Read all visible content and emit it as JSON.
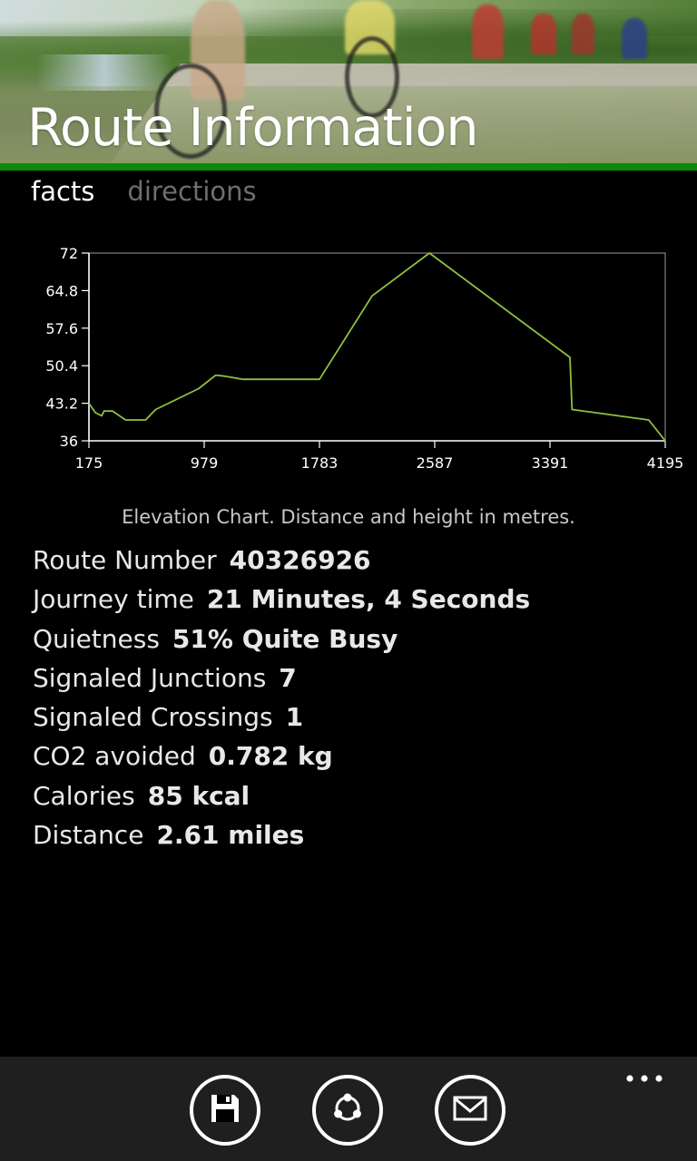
{
  "header": {
    "title": "Route Information"
  },
  "pivots": [
    {
      "label": "facts",
      "active": true
    },
    {
      "label": "directions",
      "active": false
    }
  ],
  "chart_data": {
    "type": "line",
    "x": [
      175,
      220,
      265,
      280,
      340,
      430,
      570,
      640,
      940,
      1060,
      1120,
      1250,
      1783,
      2150,
      2550,
      3530,
      3545,
      4080,
      4195
    ],
    "y": [
      43.2,
      41.4,
      40.8,
      41.7,
      41.7,
      40.0,
      40.0,
      42.0,
      46.0,
      48.6,
      48.4,
      47.8,
      47.8,
      63.8,
      72.0,
      52.0,
      42.0,
      40.0,
      36.0
    ],
    "xticks": [
      "175",
      "979",
      "1783",
      "2587",
      "3391",
      "4195"
    ],
    "yticks": [
      "72",
      "64.8",
      "57.6",
      "50.4",
      "43.2",
      "36"
    ],
    "xlim": [
      175,
      4195
    ],
    "ylim": [
      36,
      72
    ],
    "line_color": "#8fc13e",
    "axis_color": "#ffffff",
    "caption": "Elevation Chart. Distance and height in metres."
  },
  "facts": [
    {
      "label": "Route Number",
      "value": "40326926"
    },
    {
      "label": "Journey time",
      "value": "21 Minutes, 4 Seconds"
    },
    {
      "label": "Quietness",
      "value": "51% Quite Busy"
    },
    {
      "label": "Signaled Junctions",
      "value": "7"
    },
    {
      "label": "Signaled Crossings",
      "value": "1"
    },
    {
      "label": "CO2 avoided",
      "value": "0.782 kg"
    },
    {
      "label": "Calories",
      "value": "85 kcal"
    },
    {
      "label": "Distance",
      "value": "2.61 miles"
    }
  ],
  "appbar": {
    "buttons": [
      {
        "icon": "save-icon"
      },
      {
        "icon": "share-icon"
      },
      {
        "icon": "mail-icon"
      }
    ],
    "more_icon": "more-ellipsis-icon"
  },
  "colors": {
    "accent": "#0a8a0a",
    "background": "#000000",
    "appbar": "#1f1f1f"
  }
}
